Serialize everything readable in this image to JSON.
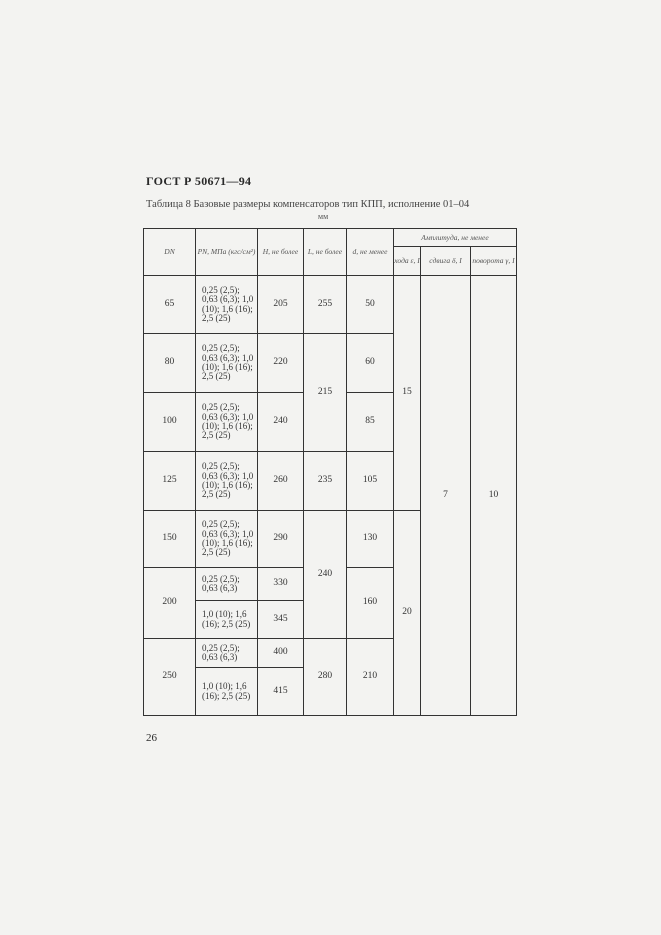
{
  "doc_code": "ГОСТ Р 50671—94",
  "caption": "Таблица 8 Базовые размеры компенсаторов тип КПП, исполнение 01–04",
  "units": "мм",
  "headers": {
    "dn": "DN",
    "pn": "PN, МПа (кгс/см²)",
    "h": "H, не более",
    "l": "L, не более",
    "d": "d, не менее",
    "amplitude": "Амплитуда, не менее",
    "stroke": "хода ε, I",
    "shift": "сдвига δ, I",
    "rotation": "поворота γ, I"
  },
  "pn_full": "0,25 (2,5); 0,63 (6,3); 1,0 (10); 1,6 (16); 2,5 (25)",
  "pn_low": "0,25 (2,5); 0,63 (6,3)",
  "pn_high": "1,0 (10); 1,6 (16); 2,5 (25)",
  "rows": [
    {
      "dn": "65",
      "h": "205",
      "l": "255",
      "d": "50"
    },
    {
      "dn": "80",
      "h": "220",
      "l": "215",
      "d": "60"
    },
    {
      "dn": "100",
      "h": "240",
      "d": "85"
    },
    {
      "dn": "125",
      "h": "260",
      "l": "235",
      "d": "105"
    },
    {
      "dn": "150",
      "h": "290",
      "l": "240",
      "d": "130"
    },
    {
      "dn": "200",
      "h": "330",
      "h2": "345",
      "d": "160"
    },
    {
      "dn": "250",
      "h": "400",
      "h2": "415",
      "l": "280",
      "d": "210"
    }
  ],
  "stroke_values": [
    "15",
    "20"
  ],
  "shift_value": "7",
  "rotation_value": "10",
  "page_number": "26"
}
